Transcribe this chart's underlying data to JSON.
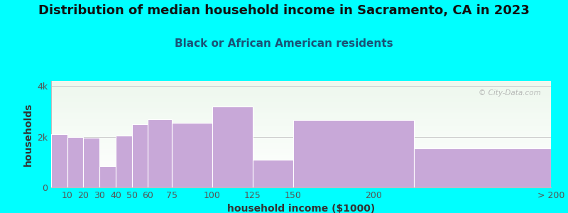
{
  "title": "Distribution of median household income in Sacramento, CA in 2023",
  "subtitle": "Black or African American residents",
  "xlabel": "household income ($1000)",
  "ylabel": "households",
  "background_color": "#00FFFF",
  "bar_color": "#c8a8d8",
  "bar_edge_color": "#ffffff",
  "bar_left_edges": [
    0,
    10,
    20,
    30,
    40,
    50,
    60,
    75,
    100,
    125,
    150,
    225
  ],
  "bar_right_edges": [
    10,
    20,
    30,
    40,
    50,
    60,
    75,
    100,
    125,
    150,
    225,
    310
  ],
  "values": [
    2100,
    2000,
    1950,
    850,
    2050,
    2500,
    2700,
    2550,
    3200,
    1100,
    2650,
    1550
  ],
  "tick_positions": [
    10,
    20,
    30,
    40,
    50,
    60,
    75,
    100,
    125,
    150,
    200,
    310
  ],
  "tick_labels": [
    "10",
    "20",
    "30",
    "40",
    "50",
    "60",
    "75",
    "100",
    "125",
    "150",
    "200",
    "> 200"
  ],
  "yticks": [
    0,
    2000,
    4000
  ],
  "ytick_labels": [
    "0",
    "2k",
    "4k"
  ],
  "xlim": [
    0,
    310
  ],
  "ylim": [
    0,
    4200
  ],
  "title_fontsize": 13,
  "subtitle_fontsize": 11,
  "axis_label_fontsize": 10,
  "tick_fontsize": 9,
  "watermark_text": "© City-Data.com"
}
